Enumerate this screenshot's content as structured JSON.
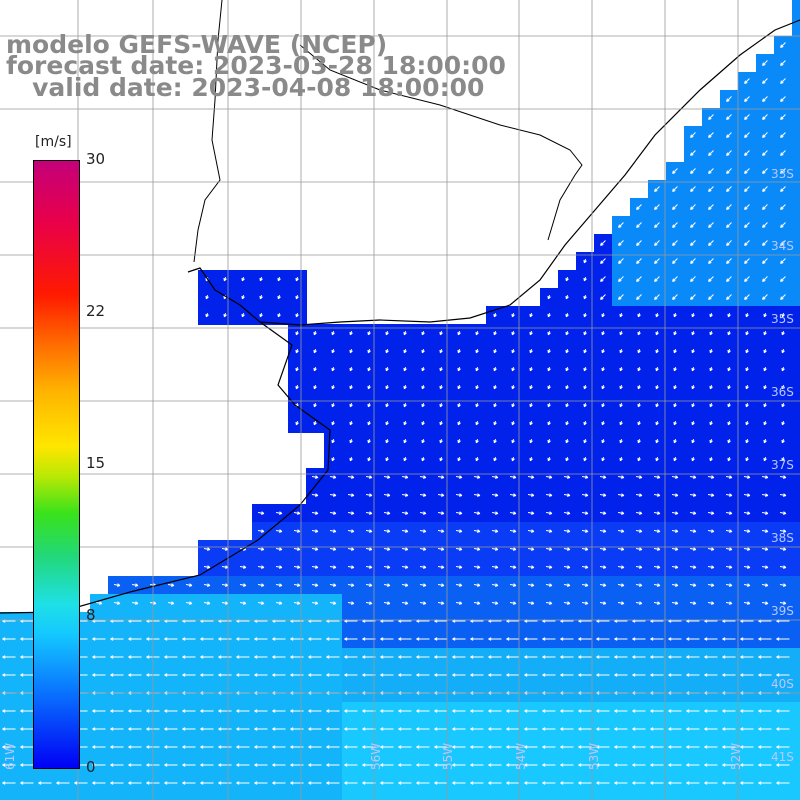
{
  "title": {
    "line1": "modelo GEFS-WAVE (NCEP)",
    "line2": "forecast date: 2023-03-28 18:00:00",
    "line3": "   valid date: 2023-04-08 18:00:00"
  },
  "colorbar": {
    "unit": "[m/s]",
    "ticks": [
      "30",
      "22",
      "15",
      "8",
      "0"
    ],
    "colors": [
      "#0000f5",
      "#0a78ff",
      "#14c8ff",
      "#22d878",
      "#3ae21a",
      "#ffe600",
      "#ff6a00",
      "#ff1a00",
      "#c4007a"
    ]
  },
  "latitude_labels": [
    "33S",
    "34S",
    "35S",
    "36S",
    "37S",
    "38S",
    "39S",
    "40S",
    "41S"
  ],
  "longitude_labels": [
    "61W",
    "56W",
    "55W",
    "54W",
    "53W",
    "52W"
  ],
  "field": {
    "land_color": "#ffffff",
    "grid_color": "#999999",
    "coast_color": "#000000",
    "arrow_color": "#ffffff",
    "inshore_speed_ms": 0,
    "offshore_speed_ms": 8
  }
}
